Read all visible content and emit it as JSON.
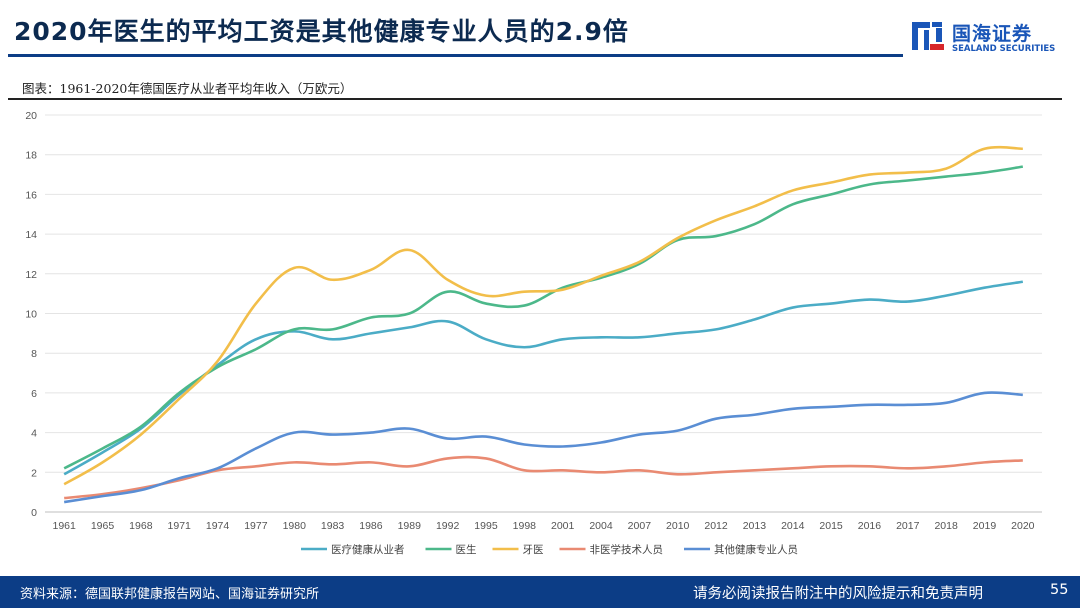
{
  "slide": {
    "title": "2020年医生的平均工资是其他健康专业人员的2.9倍",
    "logo_cn": "国海证券",
    "logo_en": "SEALAND SECURITIES",
    "figure_caption": "图表：1961-2020年德国医疗从业者平均年收入（万欧元）",
    "source": "资料来源：德国联邦健康报告网站、国海证券研究所",
    "disclaimer": "请务必阅读报告附注中的风险提示和免责声明",
    "page_number": "55"
  },
  "colors": {
    "brand_blue": "#0c3d86",
    "title_color": "#0c2a50",
    "logo_blue": "#1a56b8",
    "logo_red": "#d7262b"
  },
  "chart_data": {
    "type": "line",
    "title": "1961-2020年德国医疗从业者平均年收入（万欧元）",
    "xlabel": "",
    "ylabel": "",
    "categories": [
      "1961",
      "1965",
      "1968",
      "1971",
      "1974",
      "1977",
      "1980",
      "1983",
      "1986",
      "1989",
      "1992",
      "1995",
      "1998",
      "2001",
      "2004",
      "2007",
      "2010",
      "2012",
      "2013",
      "2014",
      "2015",
      "2016",
      "2017",
      "2018",
      "2019",
      "2020"
    ],
    "ylim": [
      0,
      20
    ],
    "yticks": [
      0,
      2,
      4,
      6,
      8,
      10,
      12,
      14,
      16,
      18,
      20
    ],
    "grid": true,
    "legend_position": "bottom",
    "series": [
      {
        "name": "医疗健康从业者",
        "color": "#4bacc6",
        "values": [
          1.9,
          3.0,
          4.2,
          5.9,
          7.4,
          8.7,
          9.1,
          8.7,
          9.0,
          9.3,
          9.6,
          8.7,
          8.3,
          8.7,
          8.8,
          8.8,
          9.0,
          9.2,
          9.7,
          10.3,
          10.5,
          10.7,
          10.6,
          10.9,
          11.3,
          11.6
        ]
      },
      {
        "name": "医生",
        "color": "#4cb88a",
        "values": [
          2.2,
          3.2,
          4.3,
          6.0,
          7.3,
          8.2,
          9.2,
          9.2,
          9.8,
          10.0,
          11.1,
          10.5,
          10.4,
          11.3,
          11.8,
          12.5,
          13.7,
          13.9,
          14.5,
          15.5,
          16.0,
          16.5,
          16.7,
          16.9,
          17.1,
          17.4
        ]
      },
      {
        "name": "牙医",
        "color": "#f2be4a",
        "values": [
          1.4,
          2.5,
          3.9,
          5.7,
          7.6,
          10.5,
          12.3,
          11.7,
          12.2,
          13.2,
          11.7,
          10.9,
          11.1,
          11.2,
          11.9,
          12.6,
          13.8,
          14.7,
          15.4,
          16.2,
          16.6,
          17.0,
          17.1,
          17.3,
          18.3,
          18.3
        ]
      },
      {
        "name": "非医学技术人员",
        "color": "#e98a72",
        "values": [
          0.7,
          0.9,
          1.2,
          1.6,
          2.1,
          2.3,
          2.5,
          2.4,
          2.5,
          2.3,
          2.7,
          2.7,
          2.1,
          2.1,
          2.0,
          2.1,
          1.9,
          2.0,
          2.1,
          2.2,
          2.3,
          2.3,
          2.2,
          2.3,
          2.5,
          2.6
        ]
      },
      {
        "name": "其他健康专业人员",
        "color": "#5a8ed4",
        "values": [
          0.5,
          0.8,
          1.1,
          1.7,
          2.2,
          3.2,
          4.0,
          3.9,
          4.0,
          4.2,
          3.7,
          3.8,
          3.4,
          3.3,
          3.5,
          3.9,
          4.1,
          4.7,
          4.9,
          5.2,
          5.3,
          5.4,
          5.4,
          5.5,
          6.0,
          5.9
        ]
      }
    ]
  }
}
